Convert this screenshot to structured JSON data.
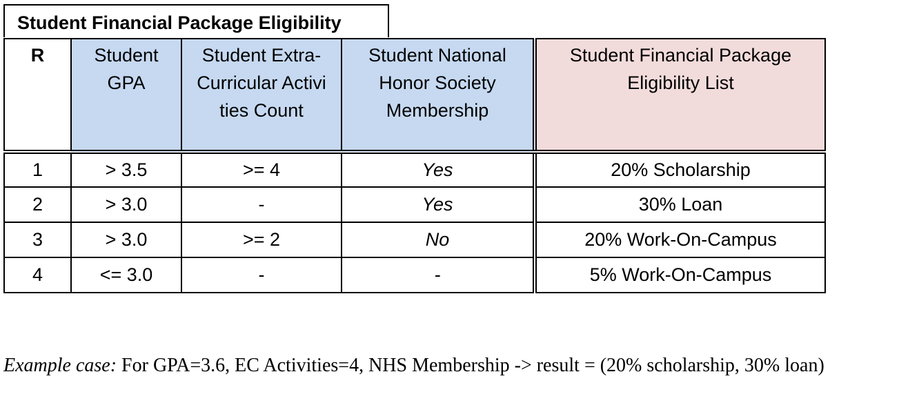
{
  "table": {
    "title": "Student Financial Package Eligibility",
    "headers": [
      "R",
      "Student GPA",
      "Student Extra-Curricular Activities Count",
      "Student National Honor Society Membership",
      "Student Financial Package Eligibility List"
    ],
    "header_colors": {
      "inputs": "#c6d9f1",
      "output": "#f2dcdb"
    },
    "rows": [
      {
        "r": "1",
        "gpa": "> 3.5",
        "ec": ">= 4",
        "nhs": "Yes",
        "result": "20% Scholarship"
      },
      {
        "r": "2",
        "gpa": "> 3.0",
        "ec": "-",
        "nhs": "Yes",
        "result": "30% Loan"
      },
      {
        "r": "3",
        "gpa": "> 3.0",
        "ec": ">= 2",
        "nhs": "No",
        "result": "20% Work-On-Campus"
      },
      {
        "r": "4",
        "gpa": "<= 3.0",
        "ec": "-",
        "nhs": "-",
        "result": "5% Work-On-Campus"
      }
    ]
  },
  "note": {
    "label": "Example case:",
    "text": " For GPA=3.6, EC Activities=4, NHS Membership -> result = (20% scholarship, 30% loan)"
  }
}
